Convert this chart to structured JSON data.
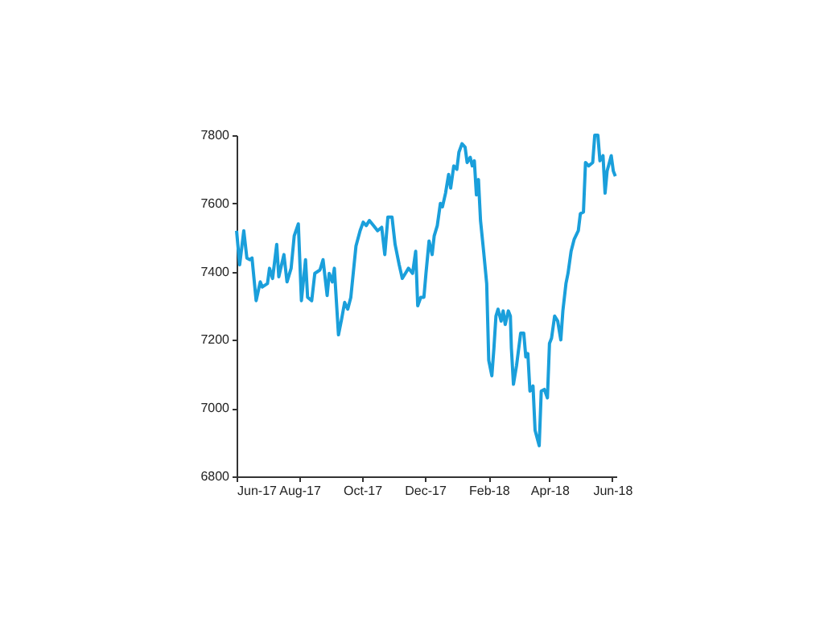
{
  "chart_data": {
    "type": "line",
    "x": [
      "2017-06-01",
      "2017-06-04",
      "2017-06-08",
      "2017-06-11",
      "2017-06-14",
      "2017-06-16",
      "2017-06-20",
      "2017-06-24",
      "2017-06-26",
      "2017-07-01",
      "2017-07-03",
      "2017-07-06",
      "2017-07-10",
      "2017-07-12",
      "2017-07-17",
      "2017-07-20",
      "2017-07-24",
      "2017-07-27",
      "2017-07-31",
      "2017-08-03",
      "2017-08-07",
      "2017-08-09",
      "2017-08-13",
      "2017-08-16",
      "2017-08-21",
      "2017-08-24",
      "2017-08-28",
      "2017-08-30",
      "2017-09-02",
      "2017-09-04",
      "2017-09-08",
      "2017-09-11",
      "2017-09-14",
      "2017-09-17",
      "2017-09-20",
      "2017-09-25",
      "2017-09-29",
      "2017-10-02",
      "2017-10-05",
      "2017-10-08",
      "2017-10-12",
      "2017-10-16",
      "2017-10-20",
      "2017-10-23",
      "2017-10-26",
      "2017-10-30",
      "2017-11-02",
      "2017-11-06",
      "2017-11-09",
      "2017-11-12",
      "2017-11-15",
      "2017-11-19",
      "2017-11-22",
      "2017-11-24",
      "2017-11-27",
      "2017-11-30",
      "2017-12-02",
      "2017-12-05",
      "2017-12-08",
      "2017-12-10",
      "2017-12-13",
      "2017-12-16",
      "2017-12-18",
      "2017-12-21",
      "2017-12-24",
      "2017-12-26",
      "2017-12-29",
      "2018-01-01",
      "2018-01-03",
      "2018-01-06",
      "2018-01-09",
      "2018-01-11",
      "2018-01-14",
      "2018-01-16",
      "2018-01-18",
      "2018-01-20",
      "2018-01-22",
      "2018-01-24",
      "2018-01-27",
      "2018-01-30",
      "2018-02-01",
      "2018-02-04",
      "2018-02-06",
      "2018-02-08",
      "2018-02-10",
      "2018-02-13",
      "2018-02-15",
      "2018-02-17",
      "2018-02-20",
      "2018-02-22",
      "2018-02-23",
      "2018-02-25",
      "2018-02-28",
      "2018-03-04",
      "2018-03-07",
      "2018-03-09",
      "2018-03-11",
      "2018-03-13",
      "2018-03-16",
      "2018-03-18",
      "2018-03-22",
      "2018-03-24",
      "2018-03-27",
      "2018-03-30",
      "2018-04-01",
      "2018-04-03",
      "2018-04-06",
      "2018-04-09",
      "2018-04-12",
      "2018-04-14",
      "2018-04-17",
      "2018-04-19",
      "2018-04-22",
      "2018-04-25",
      "2018-04-29",
      "2018-05-01",
      "2018-05-04",
      "2018-05-06",
      "2018-05-09",
      "2018-05-13",
      "2018-05-15",
      "2018-05-18",
      "2018-05-20",
      "2018-05-23",
      "2018-05-25",
      "2018-05-27",
      "2018-05-31",
      "2018-06-02",
      "2018-06-04"
    ],
    "series": [
      {
        "color": "#1a9fdb",
        "values": [
          7520,
          7420,
          7520,
          7440,
          7435,
          7440,
          7315,
          7370,
          7355,
          7365,
          7410,
          7380,
          7480,
          7385,
          7450,
          7370,
          7410,
          7505,
          7540,
          7315,
          7435,
          7325,
          7315,
          7395,
          7405,
          7435,
          7330,
          7395,
          7370,
          7410,
          7215,
          7260,
          7310,
          7290,
          7325,
          7475,
          7520,
          7545,
          7535,
          7550,
          7535,
          7520,
          7530,
          7450,
          7560,
          7560,
          7480,
          7420,
          7380,
          7395,
          7410,
          7395,
          7460,
          7300,
          7325,
          7325,
          7395,
          7490,
          7450,
          7505,
          7535,
          7600,
          7590,
          7630,
          7685,
          7645,
          7710,
          7700,
          7750,
          7775,
          7765,
          7720,
          7735,
          7710,
          7725,
          7625,
          7670,
          7550,
          7460,
          7365,
          7140,
          7095,
          7175,
          7270,
          7290,
          7255,
          7285,
          7245,
          7285,
          7270,
          7175,
          7070,
          7125,
          7220,
          7220,
          7150,
          7160,
          7050,
          7065,
          6935,
          6890,
          7050,
          7055,
          7030,
          7190,
          7205,
          7270,
          7255,
          7200,
          7285,
          7365,
          7395,
          7460,
          7495,
          7520,
          7570,
          7575,
          7720,
          7710,
          7720,
          7800,
          7800,
          7725,
          7740,
          7630,
          7695,
          7740,
          7695,
          7680
        ]
      }
    ],
    "xlim": [
      "2017-06-01",
      "2018-06-05"
    ],
    "xticks": [
      {
        "value": "2017-06-01",
        "label": "Jun-17"
      },
      {
        "value": "2017-08-01",
        "label": "Aug-17"
      },
      {
        "value": "2017-10-01",
        "label": "Oct-17"
      },
      {
        "value": "2017-12-01",
        "label": "Dec-17"
      },
      {
        "value": "2018-02-01",
        "label": "Feb-18"
      },
      {
        "value": "2018-04-01",
        "label": "Apr-18"
      },
      {
        "value": "2018-06-01",
        "label": "Jun-18"
      }
    ],
    "ylim": [
      6800,
      7800
    ],
    "yticks": [
      6800,
      7000,
      7200,
      7400,
      7600,
      7800
    ],
    "grid": false,
    "marker": "none",
    "line_style": "solid"
  }
}
